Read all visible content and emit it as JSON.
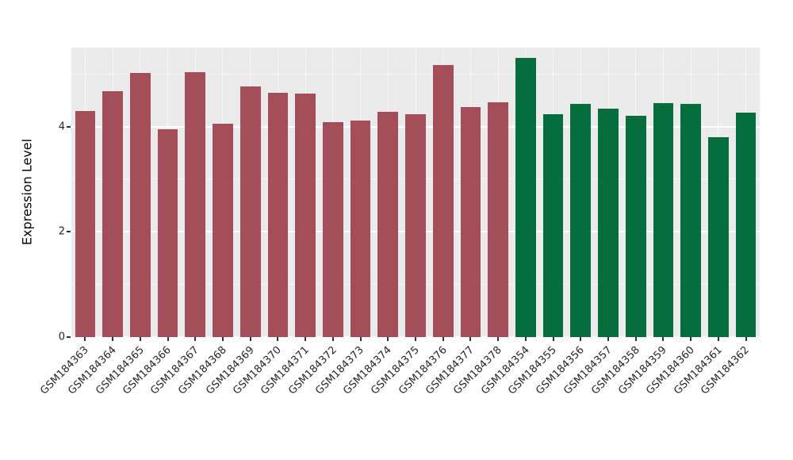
{
  "figure": {
    "background": "#FFFFFF",
    "panel_background": "#EBEBEB",
    "grid_color": "#FFFFFF",
    "tick_text_color": "#262626"
  },
  "chart_data": {
    "type": "bar",
    "title": "",
    "xlabel": "",
    "ylabel": "Expression Level",
    "ylim": [
      0,
      5.5
    ],
    "yticks": [
      0,
      2,
      4
    ],
    "yticks_minor": [
      1,
      3,
      5
    ],
    "grid": true,
    "x_tick_rotation": 45,
    "legend": null,
    "bar_groups": {
      "maroon": "#A34E58",
      "green": "#066E3C"
    },
    "bars": [
      {
        "label": "GSM184363",
        "value": 4.29,
        "group": "maroon"
      },
      {
        "label": "GSM184364",
        "value": 4.67,
        "group": "maroon"
      },
      {
        "label": "GSM184365",
        "value": 5.02,
        "group": "maroon"
      },
      {
        "label": "GSM184366",
        "value": 3.95,
        "group": "maroon"
      },
      {
        "label": "GSM184367",
        "value": 5.04,
        "group": "maroon"
      },
      {
        "label": "GSM184368",
        "value": 4.05,
        "group": "maroon"
      },
      {
        "label": "GSM184369",
        "value": 4.76,
        "group": "maroon"
      },
      {
        "label": "GSM184370",
        "value": 4.64,
        "group": "maroon"
      },
      {
        "label": "GSM184371",
        "value": 4.62,
        "group": "maroon"
      },
      {
        "label": "GSM184372",
        "value": 4.08,
        "group": "maroon"
      },
      {
        "label": "GSM184373",
        "value": 4.11,
        "group": "maroon"
      },
      {
        "label": "GSM184374",
        "value": 4.28,
        "group": "maroon"
      },
      {
        "label": "GSM184375",
        "value": 4.24,
        "group": "maroon"
      },
      {
        "label": "GSM184376",
        "value": 5.17,
        "group": "maroon"
      },
      {
        "label": "GSM184377",
        "value": 4.37,
        "group": "maroon"
      },
      {
        "label": "GSM184378",
        "value": 4.46,
        "group": "maroon"
      },
      {
        "label": "GSM184354",
        "value": 5.3,
        "group": "green"
      },
      {
        "label": "GSM184355",
        "value": 4.24,
        "group": "green"
      },
      {
        "label": "GSM184356",
        "value": 4.43,
        "group": "green"
      },
      {
        "label": "GSM184357",
        "value": 4.34,
        "group": "green"
      },
      {
        "label": "GSM184358",
        "value": 4.21,
        "group": "green"
      },
      {
        "label": "GSM184359",
        "value": 4.44,
        "group": "green"
      },
      {
        "label": "GSM184360",
        "value": 4.43,
        "group": "green"
      },
      {
        "label": "GSM184361",
        "value": 3.8,
        "group": "green"
      },
      {
        "label": "GSM184362",
        "value": 4.27,
        "group": "green"
      }
    ]
  }
}
